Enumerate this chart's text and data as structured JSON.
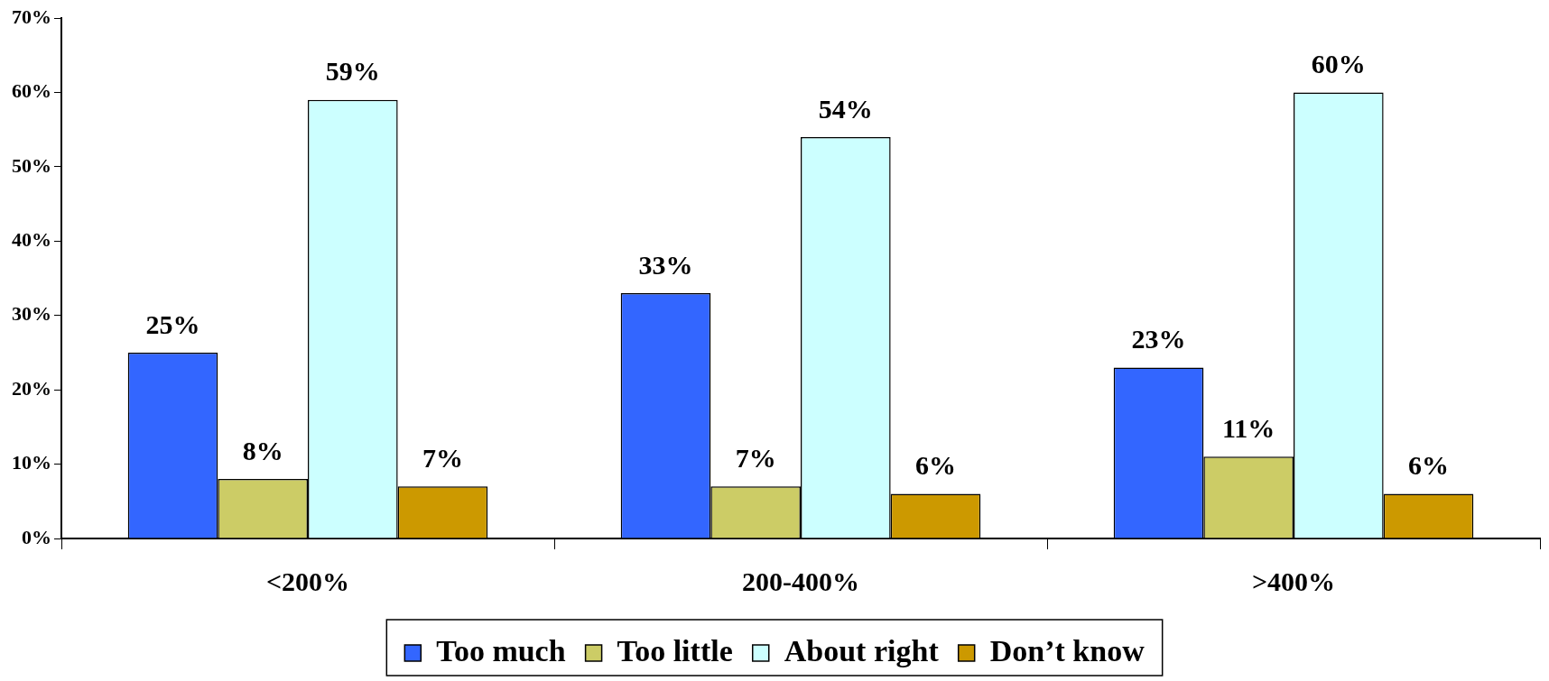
{
  "chart_data": {
    "type": "bar",
    "categories": [
      "<200%",
      "200-400%",
      ">400%"
    ],
    "series": [
      {
        "name": "Too much",
        "color": "#3366ff",
        "values": [
          25,
          33,
          23
        ],
        "value_labels": [
          "25%",
          "33%",
          "23%"
        ]
      },
      {
        "name": "Too little",
        "color": "#cccc66",
        "values": [
          8,
          7,
          11
        ],
        "value_labels": [
          "8%",
          "7%",
          "11%"
        ]
      },
      {
        "name": "About right",
        "color": "#ccffff",
        "values": [
          59,
          54,
          60
        ],
        "value_labels": [
          "59%",
          "54%",
          "60%"
        ]
      },
      {
        "name": "Don’t know",
        "color": "#cc9900",
        "values": [
          7,
          6,
          6
        ],
        "value_labels": [
          "7%",
          "6%",
          "6%"
        ]
      }
    ],
    "ylim": [
      0,
      70
    ],
    "yticks": [
      {
        "value": 0,
        "label": "0%"
      },
      {
        "value": 10,
        "label": "10%"
      },
      {
        "value": 20,
        "label": "20%"
      },
      {
        "value": 30,
        "label": "30%"
      },
      {
        "value": 40,
        "label": "40%"
      },
      {
        "value": 50,
        "label": "50%"
      },
      {
        "value": 60,
        "label": "60%"
      },
      {
        "value": 70,
        "label": "70%"
      }
    ],
    "grid": false,
    "legend": "bottom"
  }
}
